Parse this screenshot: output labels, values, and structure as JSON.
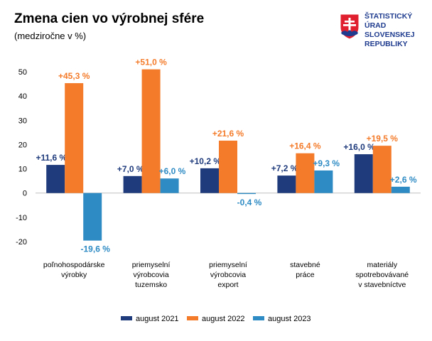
{
  "header": {
    "title": "Zmena cien vo výrobnej sfére",
    "subtitle": "(medziročne v %)"
  },
  "logo": {
    "text": "ŠTATISTICKÝ\nÚRAD\nSLOVENSKEJ\nREPUBLIKY",
    "icon": "slovak-coat-of-arms-icon",
    "colors": {
      "red": "#e0202f",
      "blue": "#1f3c8f",
      "white": "#ffffff"
    }
  },
  "chart_data": {
    "type": "bar",
    "categories": [
      [
        "poľnohospodárske",
        "výrobky"
      ],
      [
        "priemyselní",
        "výrobcovia",
        "tuzemsko"
      ],
      [
        "priemyselní",
        "výrobcovia",
        "export"
      ],
      [
        "stavebné",
        "práce"
      ],
      [
        "materiály",
        "spotrebovávané",
        "v stavebníctve"
      ]
    ],
    "series": [
      {
        "name": "august 2021",
        "color": "#1f3b7c",
        "values": [
          11.6,
          7.0,
          10.2,
          7.2,
          16.0
        ],
        "labels": [
          "+11,6 %",
          "+7,0 %",
          "+10,2 %",
          "+7,2 %",
          "+16,0 %"
        ]
      },
      {
        "name": "august 2022",
        "color": "#f47b2a",
        "values": [
          45.3,
          51.0,
          21.6,
          16.4,
          19.5
        ],
        "labels": [
          "+45,3 %",
          "+51,0 %",
          "+21,6 %",
          "+16,4 %",
          "+19,5 %"
        ]
      },
      {
        "name": "august 2023",
        "color": "#2e8bc4",
        "values": [
          -19.6,
          6.0,
          -0.4,
          9.3,
          2.6
        ],
        "labels": [
          "-19,6 %",
          "+6,0 %",
          "-0,4 %",
          "+9,3 %",
          "+2,6 %"
        ]
      }
    ],
    "y_ticks": [
      50,
      40,
      30,
      20,
      10,
      0,
      -10,
      -20
    ],
    "ylim": [
      -20,
      50
    ],
    "grid": false,
    "legend_position": "bottom"
  }
}
